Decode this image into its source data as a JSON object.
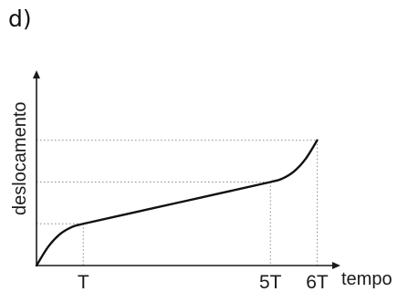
{
  "panel": {
    "label": "d)"
  },
  "chart_data": {
    "type": "line",
    "xlabel": "tempo",
    "ylabel": "deslocamento",
    "x_tick_labels": [
      {
        "x": 1,
        "label": "T"
      },
      {
        "x": 5,
        "label": "5T"
      },
      {
        "x": 6,
        "label": "6T"
      }
    ],
    "xlim": [
      0,
      6.8
    ],
    "ylim": [
      0,
      3.2
    ],
    "grid": false,
    "guide_lines_y": [
      1,
      2,
      3
    ],
    "guide_lines_x": [
      1,
      5,
      6
    ],
    "series": [
      {
        "values": [
          {
            "x": 0,
            "y": 0
          },
          {
            "x": 0.25,
            "y": 0.45
          },
          {
            "x": 0.5,
            "y": 0.75
          },
          {
            "x": 0.75,
            "y": 0.92
          },
          {
            "x": 1,
            "y": 1
          },
          {
            "x": 2,
            "y": 1.25
          },
          {
            "x": 3,
            "y": 1.5
          },
          {
            "x": 4,
            "y": 1.75
          },
          {
            "x": 5,
            "y": 2
          },
          {
            "x": 5.25,
            "y": 2.08
          },
          {
            "x": 5.5,
            "y": 2.25
          },
          {
            "x": 5.75,
            "y": 2.55
          },
          {
            "x": 6,
            "y": 3
          }
        ]
      }
    ],
    "colors": {
      "curve": "#111111",
      "axis": "#1a1a1a",
      "guide": "#8a8a8a"
    }
  }
}
